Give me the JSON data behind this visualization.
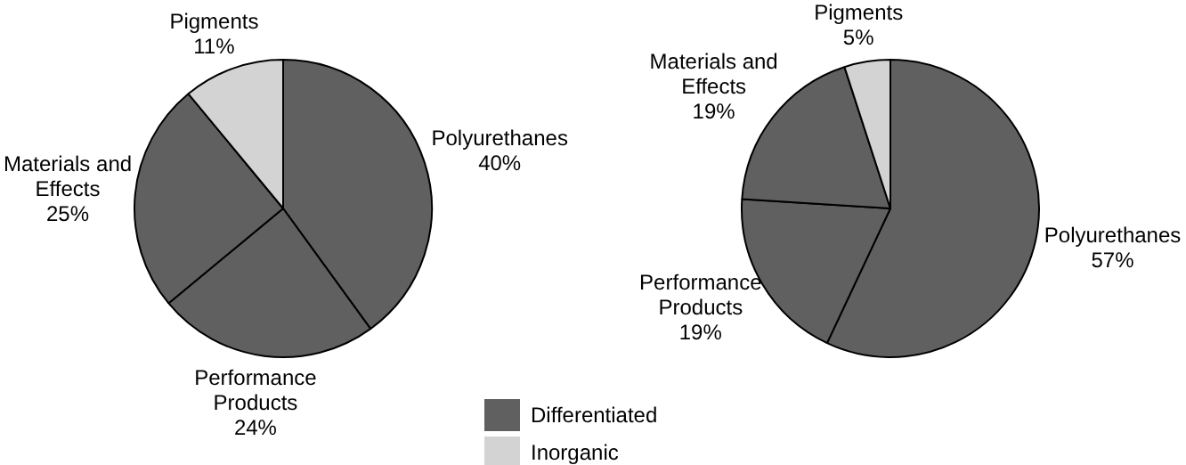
{
  "chart_data": [
    {
      "type": "pie",
      "categories": [
        "Polyurethanes",
        "Performance Products",
        "Materials and Effects",
        "Pigments"
      ],
      "values": [
        40,
        24,
        25,
        11
      ],
      "value_labels": [
        "40%",
        "24%",
        "25%",
        "11%"
      ],
      "colors": [
        "#606060",
        "#606060",
        "#606060",
        "#d3d3d3"
      ],
      "annotations": [
        "Differentiated",
        "Inorganic"
      ]
    },
    {
      "type": "pie",
      "categories": [
        "Polyurethanes",
        "Performance Products",
        "Materials and Effects",
        "Pigments"
      ],
      "values": [
        57,
        19,
        19,
        5
      ],
      "value_labels": [
        "57%",
        "19%",
        "19%",
        "5%"
      ],
      "colors": [
        "#606060",
        "#606060",
        "#606060",
        "#d3d3d3"
      ]
    }
  ]
}
